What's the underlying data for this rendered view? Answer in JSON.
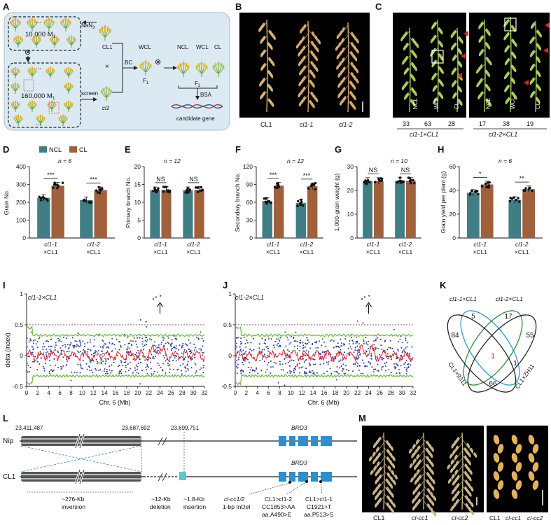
{
  "panels": {
    "A": {
      "label": "A",
      "top_pop": "10,000 M",
      "top_sub": "1",
      "nan3": "NaN",
      "nan3_sub": "3",
      "cl1": "CL1",
      "bc": "BC",
      "wcl": "WCL",
      "f1": "F",
      "f1_sub": "1",
      "ncl": "NCL",
      "wcl2": "WCL",
      "cl": "CL",
      "f2": "F",
      "f2_sub": "2",
      "bsa": "BSA",
      "candidate": "candidate gene",
      "bottom_pop": "160,000 M",
      "bottom_sub": "1",
      "screen": "screen",
      "cl1_mut": "cl1",
      "cross": "×",
      "selfing": "⊗"
    },
    "B": {
      "label": "B",
      "plants": [
        "CL1",
        "cl1-1",
        "cl1-2"
      ]
    },
    "C": {
      "label": "C",
      "left": {
        "plants": [
          "NCL",
          "WCL",
          "CL"
        ],
        "counts": [
          "33",
          "63",
          "28"
        ],
        "cross": "cl1-1×CL1"
      },
      "right": {
        "plants": [
          "NCL",
          "WCL",
          "CL"
        ],
        "counts": [
          "17",
          "38",
          "19"
        ],
        "cross": "cl1-2×CL1"
      }
    },
    "D": {
      "label": "D",
      "legend": [
        "NCL",
        "CL"
      ],
      "n": "n = 6"
    },
    "E": {
      "label": "E",
      "n": "n = 12"
    },
    "F": {
      "label": "F",
      "n": "n = 12"
    },
    "G": {
      "label": "G",
      "n": "n = 10"
    },
    "H": {
      "label": "H",
      "n": "n = 6"
    },
    "I": {
      "label": "I",
      "cross": "cl1-1×CL1",
      "xlabel": "Chr. 6 (Mb)",
      "ylabel": "delta (index)"
    },
    "J": {
      "label": "J",
      "cross": "cl1-2×CL1",
      "xlabel": "Chr. 6 (Mb)"
    },
    "K": {
      "label": "K",
      "sets": [
        "cl1-1×CL1",
        "cl1-2×CL1",
        "CL1×9311",
        "CL1×ZH11"
      ],
      "counts": [
        "5",
        "17",
        "84",
        "55",
        "1",
        "1",
        "66"
      ]
    },
    "L": {
      "label": "L",
      "nip": "Nip",
      "cl1": "CL1",
      "gene": "BRD3",
      "pos1": "23,411,487",
      "pos2": "23,687,692",
      "pos3": "23,699,751",
      "ann": [
        [
          "~276-Kb",
          "inversion"
        ],
        [
          "~12-Kb",
          "deletion"
        ],
        [
          "~1.8-Kb",
          "insertion"
        ],
        [
          "cl-cc1/2",
          "1-bp InDel"
        ],
        [
          "CL1>cl1-2",
          "CC1853>AA",
          "aa.A490>E"
        ],
        [
          "CL1>cl1-1",
          "C1921>T",
          "aa.P513>S"
        ]
      ]
    },
    "M": {
      "label": "M",
      "plants": [
        "CL1",
        "cl-cc1",
        "cl-cc2"
      ],
      "grains": [
        "CL1",
        "cl-cc1",
        "cl-cc2"
      ]
    }
  },
  "colors": {
    "ncl": "#3f7e85",
    "cl": "#a0603b",
    "bg_A": "#dbe9f3",
    "gene": "#2b8fd0"
  },
  "chart_data": [
    {
      "type": "bar",
      "panel": "D",
      "ylabel": "Grain No.",
      "ylim": [
        0,
        400
      ],
      "yticks": [
        0,
        100,
        200,
        300,
        400
      ],
      "categories": [
        "cl1-1 ×CL1",
        "cl1-2 ×CL1"
      ],
      "series": [
        {
          "name": "NCL",
          "values": [
            225,
            212
          ]
        },
        {
          "name": "CL",
          "values": [
            293,
            268
          ]
        }
      ],
      "sig": [
        "***",
        "***"
      ]
    },
    {
      "type": "bar",
      "panel": "E",
      "ylabel": "Primary branch No.",
      "ylim": [
        0,
        20
      ],
      "yticks": [
        0,
        5,
        10,
        15,
        20
      ],
      "categories": [
        "cl1-1 ×CL1",
        "cl1-2 ×CL1"
      ],
      "series": [
        {
          "name": "NCL",
          "values": [
            13.4,
            13.4
          ]
        },
        {
          "name": "CL",
          "values": [
            13.5,
            13.5
          ]
        }
      ],
      "sig": [
        "NS",
        "NS"
      ]
    },
    {
      "type": "bar",
      "panel": "F",
      "ylabel": "Secondary branch No.",
      "ylim": [
        0,
        120
      ],
      "yticks": [
        0,
        30,
        60,
        90,
        120
      ],
      "categories": [
        "cl1-1 ×CL1",
        "cl1-2 ×CL1"
      ],
      "series": [
        {
          "name": "NCL",
          "values": [
            62,
            59
          ]
        },
        {
          "name": "CL",
          "values": [
            88,
            87
          ]
        }
      ],
      "sig": [
        "***",
        "***"
      ]
    },
    {
      "type": "bar",
      "panel": "G",
      "ylabel": "1,000-grain weight (g)",
      "ylim": [
        0,
        30
      ],
      "yticks": [
        0,
        10,
        20,
        30
      ],
      "categories": [
        "cl1-1 ×CL1",
        "cl1-2 ×CL1"
      ],
      "series": [
        {
          "name": "NCL",
          "values": [
            24,
            24
          ]
        },
        {
          "name": "CL",
          "values": [
            24,
            24
          ]
        }
      ],
      "sig": [
        "NS",
        "NS"
      ]
    },
    {
      "type": "bar",
      "panel": "H",
      "ylabel": "Grain yield per plant (g)",
      "ylim": [
        0,
        60
      ],
      "yticks": [
        0,
        20,
        40,
        60
      ],
      "categories": [
        "cl1-1 ×CL1",
        "cl1-2 ×CL1"
      ],
      "series": [
        {
          "name": "NCL",
          "values": [
            38,
            32
          ]
        },
        {
          "name": "CL",
          "values": [
            45,
            41
          ]
        }
      ],
      "sig": [
        "*",
        "**"
      ]
    },
    {
      "type": "scatter",
      "panel": "I",
      "xlabel": "Chr. 6 (Mb)",
      "ylabel": "delta (index)",
      "xlim": [
        0,
        32
      ],
      "ylim": [
        -0.5,
        1
      ],
      "xticks": [
        0,
        2,
        4,
        6,
        8,
        10,
        12,
        14,
        16,
        18,
        20,
        22,
        24,
        26,
        28,
        30,
        32
      ],
      "yticks": [
        -0.5,
        0,
        0.5,
        1
      ],
      "threshold": 0.5,
      "peak_x": 24
    },
    {
      "type": "scatter",
      "panel": "J",
      "xlabel": "Chr. 6 (Mb)",
      "ylabel": "delta (index)",
      "xlim": [
        0,
        32
      ],
      "ylim": [
        -0.5,
        1
      ],
      "xticks": [
        0,
        2,
        4,
        6,
        8,
        10,
        12,
        14,
        16,
        18,
        20,
        22,
        24,
        26,
        28,
        30,
        32
      ],
      "yticks": [
        -0.5,
        0,
        0.5,
        1
      ],
      "threshold": 0.5,
      "peak_x": 24
    }
  ]
}
